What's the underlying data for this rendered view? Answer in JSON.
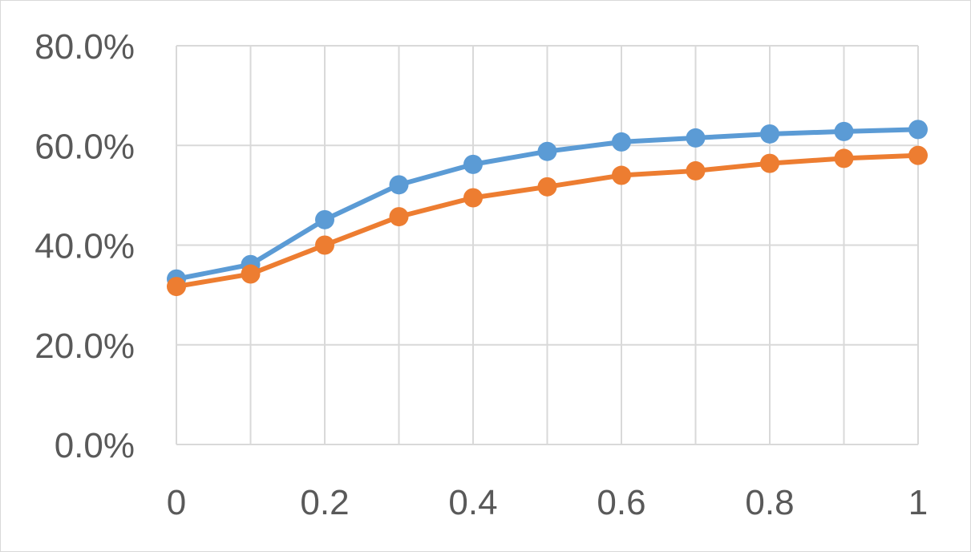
{
  "chart_data": {
    "type": "line",
    "title": "",
    "xlabel": "",
    "ylabel": "",
    "x": [
      0,
      0.1,
      0.2,
      0.3,
      0.4,
      0.5,
      0.6,
      0.7,
      0.8,
      0.9,
      1
    ],
    "xlim": [
      0,
      1
    ],
    "ylim": [
      0,
      0.8
    ],
    "x_tick_values": [
      0,
      0.2,
      0.4,
      0.6,
      0.8,
      1
    ],
    "x_tick_labels": [
      "0",
      "0.2",
      "0.4",
      "0.6",
      "0.8",
      "1"
    ],
    "y_tick_values": [
      0,
      0.2,
      0.4,
      0.6,
      0.8
    ],
    "y_tick_labels": [
      "0.0%",
      "20.0%",
      "40.0%",
      "60.0%",
      "80.0%"
    ],
    "grid": true,
    "legend": "none",
    "series": [
      {
        "color": "#5b9bd5",
        "values": [
          0.332,
          0.361,
          0.451,
          0.521,
          0.562,
          0.588,
          0.607,
          0.615,
          0.623,
          0.628,
          0.632
        ]
      },
      {
        "color": "#ed7d31",
        "values": [
          0.317,
          0.342,
          0.4,
          0.457,
          0.495,
          0.517,
          0.54,
          0.549,
          0.564,
          0.574,
          0.58
        ]
      }
    ]
  }
}
